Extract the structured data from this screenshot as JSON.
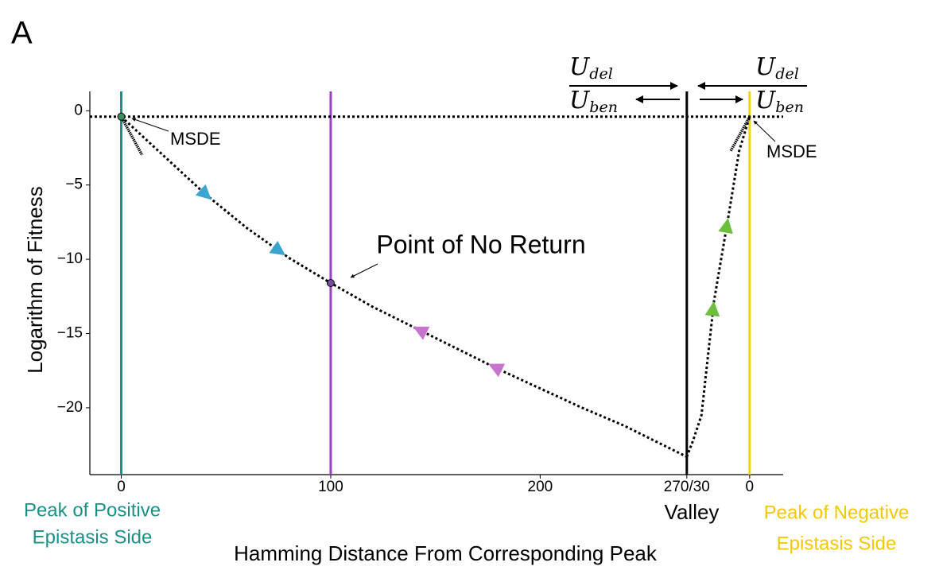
{
  "panel_label": "A",
  "chart_data": {
    "type": "landscape",
    "x_label": "Hamming Distance From Corresponding Peak",
    "y_label": "Logarithm of Fitness",
    "xlim": [
      -15,
      316
    ],
    "ylim": [
      -24.5,
      1.3
    ],
    "xticks": [
      0,
      100,
      200,
      {
        "value": 270,
        "label": "270/30"
      },
      {
        "value": 300,
        "label": "0"
      }
    ],
    "yticks": [
      0,
      {
        "value": -5,
        "label": "−5"
      },
      {
        "value": -10,
        "label": "−10"
      },
      {
        "value": -15,
        "label": "−15"
      },
      {
        "value": -20,
        "label": "−20"
      }
    ],
    "hline": -0.4,
    "vlines": [
      {
        "x": 0,
        "color": "#1b9085"
      },
      {
        "x": 100,
        "color": "#9b3fc9"
      },
      {
        "x": 270,
        "color": "#000000"
      },
      {
        "x": 300,
        "color": "#f2d300"
      }
    ],
    "curves": [
      {
        "x": [
          0,
          20,
          40,
          60,
          80,
          100,
          120,
          140,
          160,
          180,
          200,
          220,
          240,
          260,
          270
        ],
        "y": [
          -0.4,
          -3.0,
          -5.6,
          -7.9,
          -9.9,
          -11.6,
          -13.2,
          -14.6,
          -16.0,
          -17.4,
          -18.7,
          -20.0,
          -21.2,
          -22.6,
          -23.3
        ]
      },
      {
        "x": [
          270,
          273,
          277,
          283,
          290,
          295,
          300
        ],
        "y": [
          -23.3,
          -22.2,
          -20.5,
          -12.8,
          -7.0,
          -2.7,
          -0.4
        ]
      }
    ],
    "slope_lines": [
      {
        "x": [
          0,
          10
        ],
        "y": [
          -0.4,
          -3.0
        ]
      },
      {
        "x": [
          300,
          291
        ],
        "y": [
          -0.4,
          -2.7
        ]
      }
    ],
    "arrows": [
      {
        "x": 40,
        "y": -5.6,
        "color": "#3aa6cf",
        "curve": 0,
        "heading": "forward"
      },
      {
        "x": 75,
        "y": -9.4,
        "color": "#3aa6cf",
        "curve": 0,
        "heading": "forward"
      },
      {
        "x": 143,
        "y": -14.8,
        "color": "#c774cf",
        "curve": 0,
        "heading": "backward"
      },
      {
        "x": 179,
        "y": -17.3,
        "color": "#c774cf",
        "curve": 0,
        "heading": "backward"
      },
      {
        "x": 282.5,
        "y": -13.4,
        "color": "#6cbf3c",
        "curve": 1,
        "heading": "forward"
      },
      {
        "x": 289,
        "y": -7.8,
        "color": "#6cbf3c",
        "curve": 1,
        "heading": "forward"
      }
    ],
    "points": [
      {
        "x": 0,
        "y": -0.4,
        "color": "#3a8f5a"
      },
      {
        "x": 100,
        "y": -11.6,
        "color": "#7b4fa0"
      }
    ],
    "annotations": {
      "msde": "MSDE",
      "point_of_no_return": "Point of No Return"
    },
    "region_labels": {
      "positive_peak": {
        "lines": [
          "Peak of Positive",
          "Epistasis Side"
        ],
        "color": "#1b9085"
      },
      "valley": "Valley",
      "negative_peak": {
        "lines": [
          "Peak of Negative",
          "Epistasis Side"
        ],
        "color": "#f2c800"
      }
    },
    "rate_ratio": {
      "numerator": "U",
      "numerator_sub": "del",
      "denominator": "U",
      "denominator_sub": "ben"
    }
  }
}
